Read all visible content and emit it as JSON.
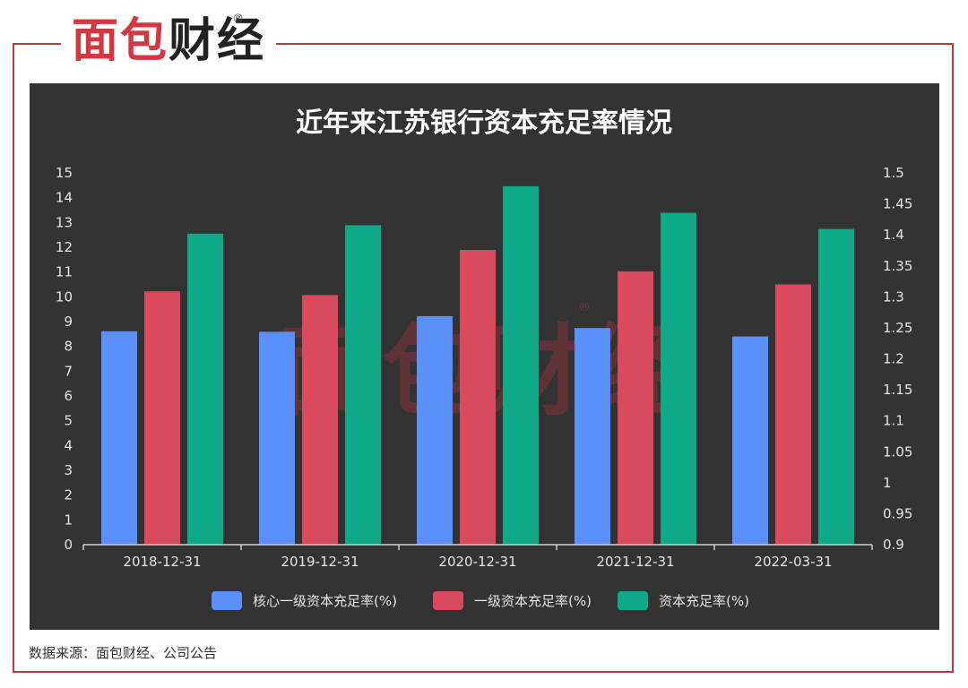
{
  "brand": {
    "logo_text_part1": "面包",
    "logo_text_part2": "财经",
    "registered": "®",
    "colors": {
      "brand_red": "#d4373f",
      "frame_red": "#c8323c",
      "panel_bg": "#333333"
    }
  },
  "source_note": "数据来源：面包财经、公司公告",
  "chart_data": {
    "type": "bar",
    "title": "近年来江苏银行资本充足率情况",
    "categories": [
      "2018-12-31",
      "2019-12-31",
      "2020-12-31",
      "2021-12-31",
      "2022-03-31"
    ],
    "series": [
      {
        "name": "核心一级资本充足率(%)",
        "color": "#5b8ff9",
        "values": [
          8.61,
          8.59,
          9.22,
          8.74,
          8.4
        ]
      },
      {
        "name": "一级资本充足率(%)",
        "color": "#d94a5f",
        "values": [
          10.22,
          10.07,
          11.89,
          11.03,
          10.5
        ]
      },
      {
        "name": "资本充足率(%)",
        "color": "#0fa888",
        "values": [
          12.55,
          12.89,
          14.46,
          13.39,
          12.74
        ]
      }
    ],
    "y_left": {
      "min": 0,
      "max": 15,
      "ticks": [
        "0",
        "1",
        "2",
        "3",
        "4",
        "5",
        "6",
        "7",
        "8",
        "9",
        "10",
        "11",
        "12",
        "13",
        "14",
        "15"
      ]
    },
    "y_right": {
      "min": 0.9,
      "max": 1.5,
      "ticks": [
        "0.9",
        "0.95",
        "1",
        "1.05",
        "1.1",
        "1.15",
        "1.2",
        "1.25",
        "1.3",
        "1.35",
        "1.4",
        "1.45",
        "1.5"
      ]
    },
    "legend_position": "bottom",
    "grid": false,
    "watermark_text": "面包财经",
    "watermark_reg": "®"
  }
}
